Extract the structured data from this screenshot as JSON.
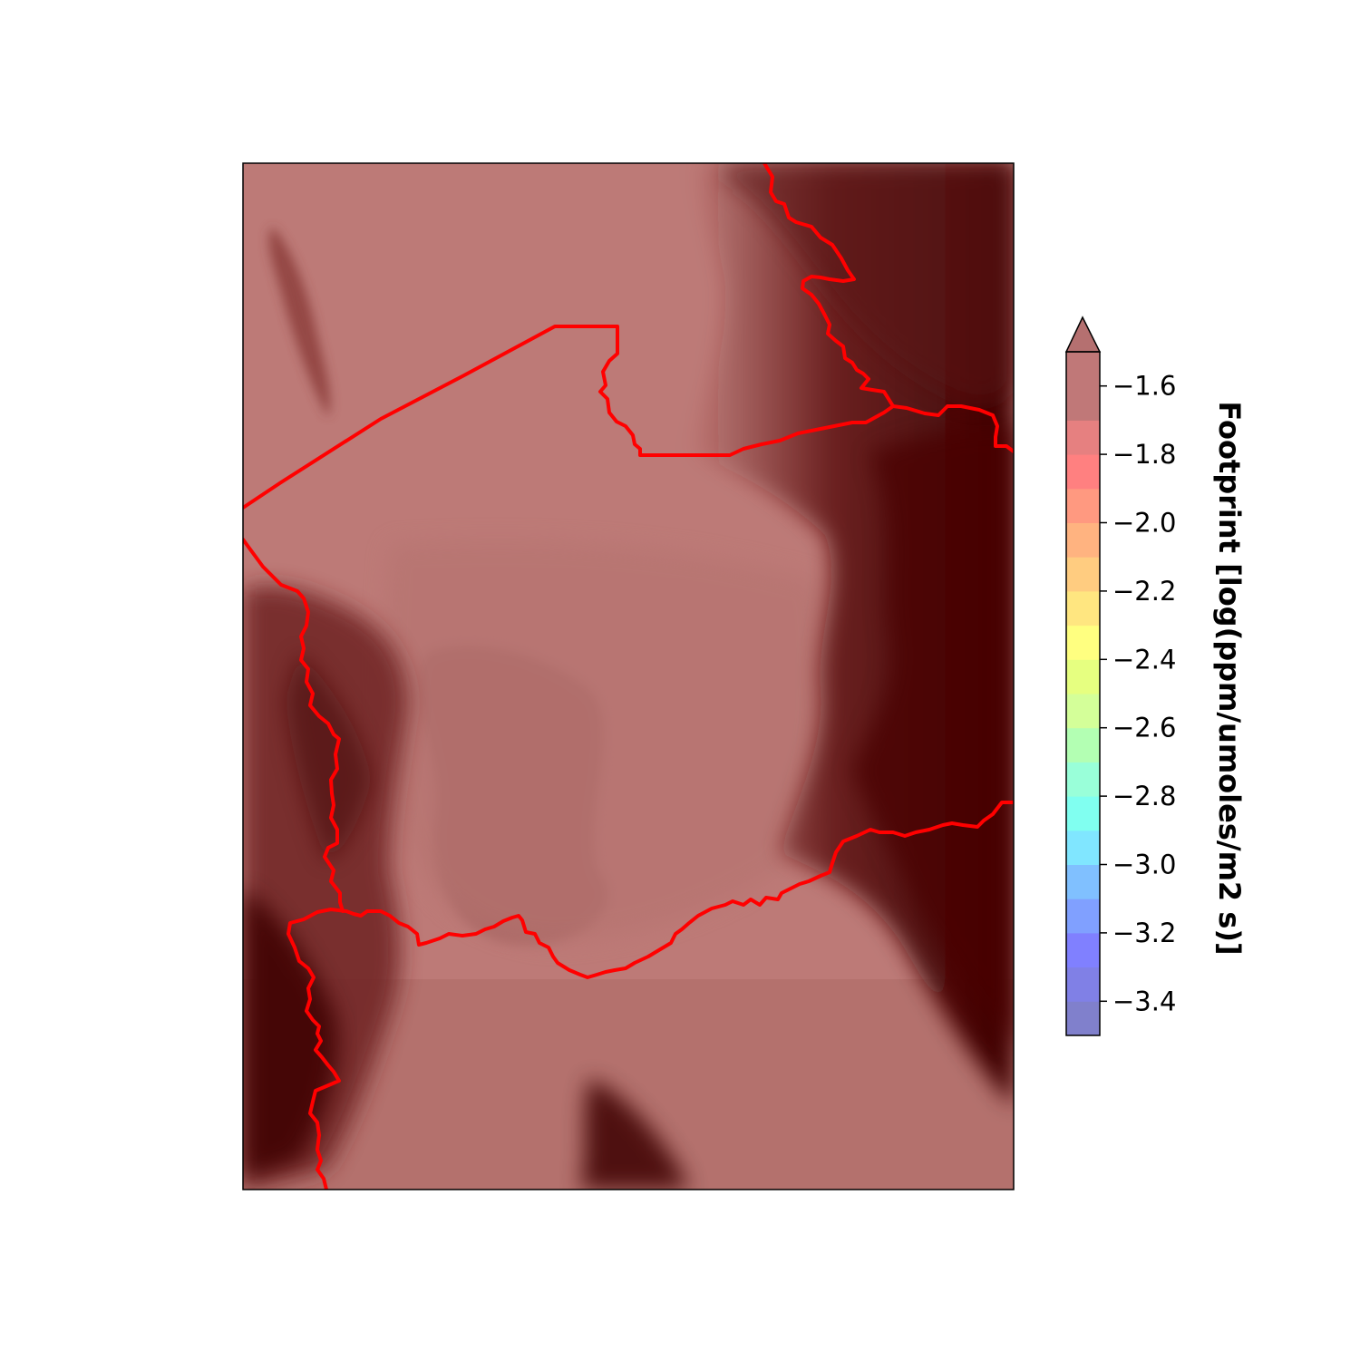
{
  "figure": {
    "type": "filled-contour map with administrative boundaries"
  },
  "colorbar": {
    "label": "Footprint [log(ppm/umoles/m2 s)]",
    "extend": "max",
    "levels": [
      -3.5,
      -3.4,
      -3.3,
      -3.2,
      -3.1,
      -3.0,
      -2.9,
      -2.8,
      -2.7,
      -2.6,
      -2.5,
      -2.4,
      -2.3,
      -2.2,
      -2.1,
      -2.0,
      -1.9,
      -1.8,
      -1.7,
      -1.6
    ],
    "colors": [
      "#8080cc",
      "#8080e6",
      "#8080ff",
      "#80a0ff",
      "#80c0ff",
      "#80e6ff",
      "#80fff0",
      "#99ffd9",
      "#b3ffb3",
      "#d4ff99",
      "#e6ff80",
      "#ffff80",
      "#ffe680",
      "#ffcc80",
      "#ffb380",
      "#ff9980",
      "#ff8080",
      "#e68080",
      "#c07878"
    ],
    "extend_color": "#b57070",
    "ticks": [
      -1.6,
      -1.8,
      -2.0,
      -2.2,
      -2.4,
      -2.6,
      -2.8,
      -3.0,
      -3.2,
      -3.4
    ],
    "tick_labels": [
      "−1.6",
      "−1.8",
      "−2.0",
      "−2.2",
      "−2.4",
      "−2.6",
      "−2.8",
      "−3.0",
      "−3.2",
      "−3.4"
    ],
    "range": [
      -3.5,
      -1.5
    ]
  },
  "map": {
    "terrain_base_color": "#bd7a77",
    "terrain_dark_color": "#3d0000",
    "boundary_color": "#ff0000"
  }
}
